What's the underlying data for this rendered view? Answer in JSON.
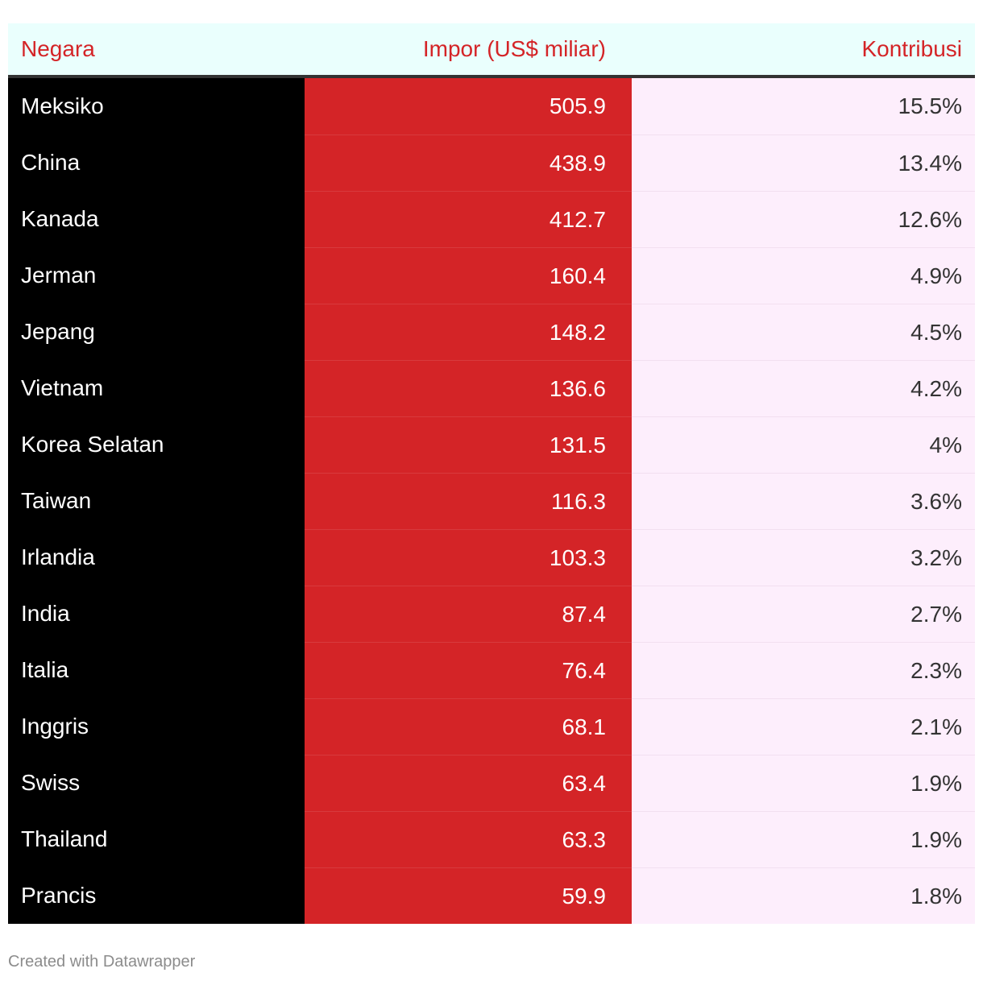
{
  "chart_data": {
    "type": "table",
    "columns": [
      "Negara",
      "Impor (US$ miliar)",
      "Kontribusi"
    ],
    "rows": [
      {
        "country": "Meksiko",
        "imports": "505.9",
        "share": "15.5%"
      },
      {
        "country": "China",
        "imports": "438.9",
        "share": "13.4%"
      },
      {
        "country": "Kanada",
        "imports": "412.7",
        "share": "12.6%"
      },
      {
        "country": "Jerman",
        "imports": "160.4",
        "share": "4.9%"
      },
      {
        "country": "Jepang",
        "imports": "148.2",
        "share": "4.5%"
      },
      {
        "country": "Vietnam",
        "imports": "136.6",
        "share": "4.2%"
      },
      {
        "country": "Korea Selatan",
        "imports": "131.5",
        "share": "4%"
      },
      {
        "country": "Taiwan",
        "imports": "116.3",
        "share": "3.6%"
      },
      {
        "country": "Irlandia",
        "imports": "103.3",
        "share": "3.2%"
      },
      {
        "country": "India",
        "imports": "87.4",
        "share": "2.7%"
      },
      {
        "country": "Italia",
        "imports": "76.4",
        "share": "2.3%"
      },
      {
        "country": "Inggris",
        "imports": "68.1",
        "share": "2.1%"
      },
      {
        "country": "Swiss",
        "imports": "63.4",
        "share": "1.9%"
      },
      {
        "country": "Thailand",
        "imports": "63.3",
        "share": "1.9%"
      },
      {
        "country": "Prancis",
        "imports": "59.9",
        "share": "1.8%"
      }
    ]
  },
  "colors": {
    "header_text": "#d42427",
    "header_bg": "#eafffd",
    "name_bg": "#000000",
    "value_bg": "#d42427",
    "share_bg": "#fdeefc"
  },
  "footer": {
    "credit": "Created with Datawrapper"
  }
}
